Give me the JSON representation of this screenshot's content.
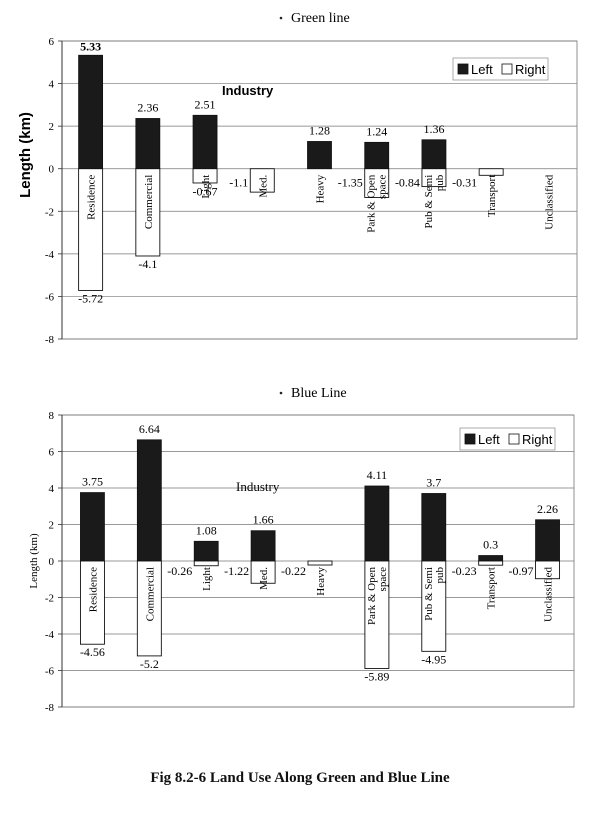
{
  "caption": "Fig 8.2-6 Land Use Along Green and Blue Line",
  "chart_data": [
    {
      "type": "bar",
      "title": "Green line",
      "ylabel": "Length (km)",
      "xlabel": "",
      "ylim": [
        -8,
        6
      ],
      "yticks": [
        -8,
        -6,
        -4,
        -2,
        0,
        2,
        4,
        6
      ],
      "grid": true,
      "legend_position": "top-right",
      "annotation": "Industry",
      "categories": [
        "Residence",
        "Commercial",
        "Light",
        "Med.",
        "Heavy",
        "Park & Open space",
        "Pub & Semi pub",
        "Transport",
        "Unclassified"
      ],
      "series": [
        {
          "name": "Left",
          "color": "#1a1a1a",
          "values": [
            5.33,
            2.36,
            2.51,
            0,
            1.28,
            1.24,
            1.36,
            0,
            0
          ],
          "labels": [
            "5.33",
            "2.36",
            "2.51",
            "",
            "1.28",
            "1.24",
            "1.36",
            "",
            ""
          ]
        },
        {
          "name": "Right",
          "color": "#ffffff",
          "values": [
            -5.72,
            -4.1,
            -0.67,
            -1.1,
            0,
            -1.35,
            -0.84,
            -0.31,
            0
          ],
          "labels": [
            "-5.72",
            "-4.1",
            "-0.67",
            "-1.1",
            "",
            "-1.35",
            "-0.84",
            "-0.31",
            ""
          ]
        }
      ]
    },
    {
      "type": "bar",
      "title": "Blue Line",
      "ylabel": "Length (km)",
      "xlabel": "",
      "ylim": [
        -8,
        8
      ],
      "yticks": [
        -8,
        -6,
        -4,
        -2,
        0,
        2,
        4,
        6,
        8
      ],
      "grid": true,
      "legend_position": "top-right",
      "annotation": "Industry",
      "categories": [
        "Residence",
        "Commercial",
        "Light",
        "Med.",
        "Heavy",
        "Park & Open space",
        "Pub & Semi pub",
        "Transport",
        "Unclassified"
      ],
      "series": [
        {
          "name": "Left",
          "color": "#1a1a1a",
          "values": [
            3.75,
            6.64,
            1.08,
            1.66,
            0,
            4.11,
            3.7,
            0.3,
            2.26
          ],
          "labels": [
            "3.75",
            "6.64",
            "1.08",
            "1.66",
            "",
            "4.11",
            "3.7",
            "0.3",
            "2.26"
          ]
        },
        {
          "name": "Right",
          "color": "#ffffff",
          "values": [
            -4.56,
            -5.2,
            -0.26,
            -1.22,
            -0.22,
            -5.89,
            -4.95,
            -0.23,
            -0.97
          ],
          "labels": [
            "-4.56",
            "-5.2",
            "-0.26",
            "-1.22",
            "-0.22",
            "-5.89",
            "-4.95",
            "-0.23",
            "-0.97"
          ]
        }
      ]
    }
  ]
}
